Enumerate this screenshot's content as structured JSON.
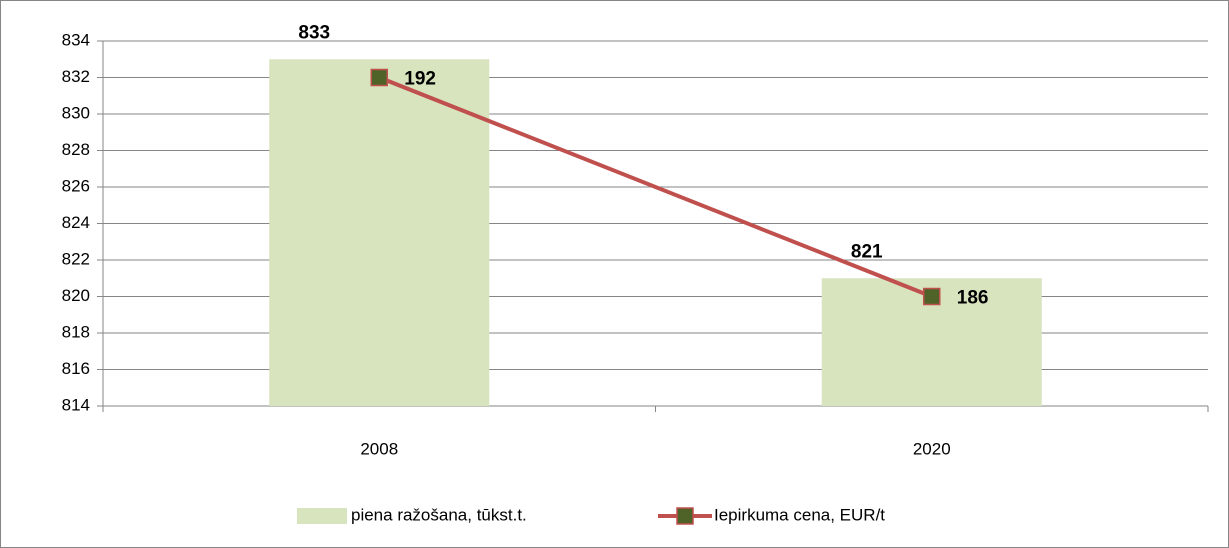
{
  "chart_data": {
    "type": "bar_line",
    "categories": [
      "2008",
      "2020"
    ],
    "series": [
      {
        "name": "piena ražošana, tūkst.t.",
        "color": "#d7e4bd",
        "type": "bar",
        "values": [
          833,
          821
        ]
      },
      {
        "name": "Iepirkuma cena, EUR/t",
        "color": "#c0504d",
        "marker_color": "#4f6228",
        "type": "line",
        "axis": "y2",
        "values": [
          192,
          186
        ]
      }
    ],
    "ylim": [
      814,
      834
    ],
    "yticks": [
      814,
      816,
      818,
      820,
      822,
      824,
      826,
      828,
      830,
      832,
      834
    ],
    "y2lim": [
      183,
      193
    ],
    "grid": true,
    "legend": "bottom"
  }
}
